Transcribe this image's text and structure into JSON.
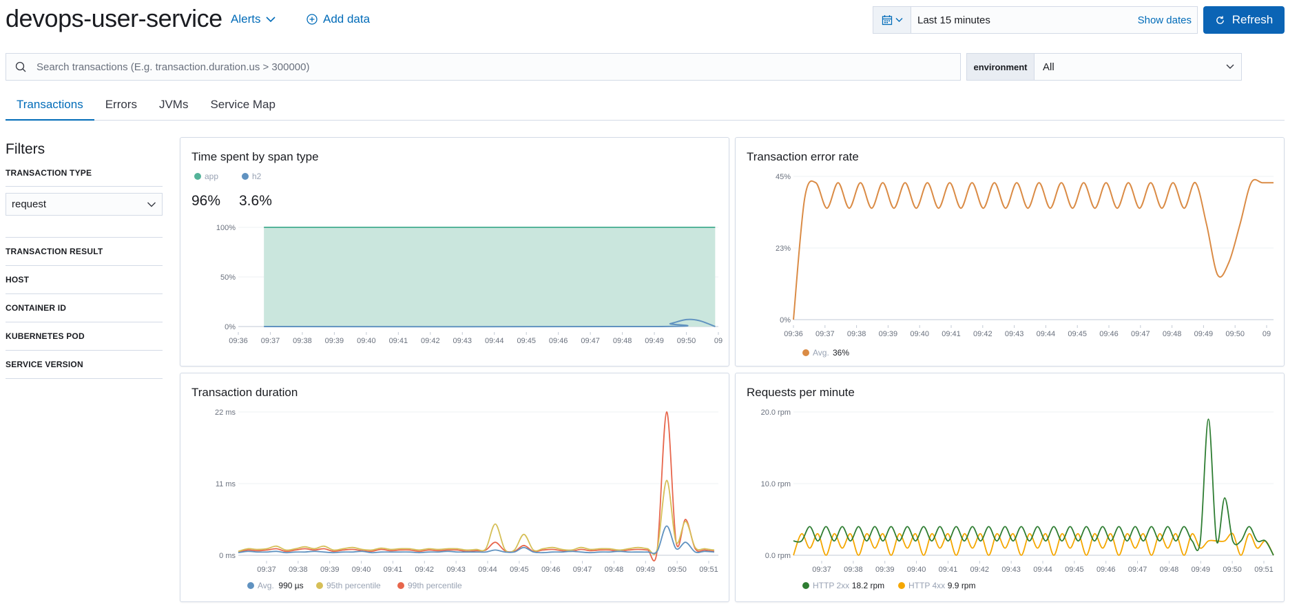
{
  "header": {
    "title": "devops-user-service",
    "alerts_label": "Alerts",
    "add_data_label": "Add data",
    "date_range": "Last 15 minutes",
    "show_dates_label": "Show dates",
    "refresh_label": "Refresh"
  },
  "search": {
    "placeholder": "Search transactions (E.g. transaction.duration.us > 300000)",
    "value": ""
  },
  "environment": {
    "label": "environment",
    "value": "All"
  },
  "tabs": [
    {
      "label": "Transactions",
      "active": true
    },
    {
      "label": "Errors",
      "active": false
    },
    {
      "label": "JVMs",
      "active": false
    },
    {
      "label": "Service Map",
      "active": false
    }
  ],
  "filters": {
    "title": "Filters",
    "transaction_type_heading": "TRANSACTION TYPE",
    "transaction_type_value": "request",
    "headings": [
      "TRANSACTION RESULT",
      "HOST",
      "CONTAINER ID",
      "KUBERNETES POD",
      "SERVICE VERSION"
    ]
  },
  "colors": {
    "accent": "#006bb8",
    "button": "#0b64b5",
    "app": "#54b399",
    "h2": "#6092c0",
    "orange": "#e7664c",
    "error_rate": "#da8b45",
    "p95": "#d6bf57",
    "green": "#2e7d32",
    "yellow": "#f5a700"
  },
  "icons": {
    "alerts_chevron": "chevron-down-icon",
    "add_data": "plus-circle-icon",
    "date_quick": "calendar-icon",
    "refresh": "refresh-icon",
    "search": "search-icon",
    "select_chevron": "chevron-down-icon"
  },
  "chart_data": [
    {
      "id": "span-type",
      "type": "area",
      "title": "Time spent by span type",
      "legend": [
        {
          "name": "app",
          "value": "96%",
          "color": "#54b399"
        },
        {
          "name": "h2",
          "value": "3.6%",
          "color": "#6092c0"
        }
      ],
      "y_ticks": [
        "100%",
        "50%",
        "0%"
      ],
      "ylim": [
        0,
        100
      ],
      "x_ticks": [
        "09:36",
        "09:37",
        "09:38",
        "09:39",
        "09:40",
        "09:41",
        "09:42",
        "09:43",
        "09:44",
        "09:45",
        "09:46",
        "09:47",
        "09:48",
        "09:49",
        "09:50",
        "09"
      ],
      "series": [
        {
          "name": "app",
          "start_minute": 9.36,
          "x": [
            0.8,
            14.9
          ],
          "values": [
            100,
            100
          ]
        },
        {
          "name": "h2",
          "x": [
            0.8,
            13.0,
            13.5,
            14.0,
            14.4,
            14.9
          ],
          "values": [
            0,
            0,
            3,
            7,
            6,
            0
          ]
        }
      ]
    },
    {
      "id": "error-rate",
      "type": "line",
      "title": "Transaction error rate",
      "y_ticks": [
        "45%",
        "23%",
        "0%"
      ],
      "ylim": [
        0,
        45
      ],
      "x_ticks": [
        "09:36",
        "09:37",
        "09:38",
        "09:39",
        "09:40",
        "09:41",
        "09:42",
        "09:43",
        "09:44",
        "09:45",
        "09:46",
        "09:47",
        "09:48",
        "09:49",
        "09:50",
        "09"
      ],
      "summary": {
        "name": "Avg.",
        "value": "36%"
      },
      "series": [
        {
          "name": "error rate",
          "values": [
            0,
            38,
            43,
            35,
            43,
            35,
            43,
            35,
            43,
            35,
            43,
            35,
            43,
            35,
            43,
            35,
            43,
            35,
            43,
            35,
            43,
            35,
            43,
            35,
            43,
            35,
            43,
            35,
            43,
            35,
            43,
            35,
            43,
            35,
            43,
            35,
            43,
            30,
            14,
            18,
            30,
            43,
            43,
            43
          ]
        }
      ]
    },
    {
      "id": "duration",
      "type": "line",
      "title": "Transaction duration",
      "y_ticks": [
        "22 ms",
        "11 ms",
        "0 ms"
      ],
      "ylim": [
        0,
        22
      ],
      "x_ticks": [
        "09:37",
        "09:38",
        "09:39",
        "09:40",
        "09:41",
        "09:42",
        "09:43",
        "09:44",
        "09:45",
        "09:46",
        "09:47",
        "09:48",
        "09:49",
        "09:50",
        "09:51"
      ],
      "legend": [
        {
          "name": "Avg.",
          "value": "990 µs",
          "color": "#6092c0"
        },
        {
          "name": "95th percentile",
          "value": "",
          "color": "#d6bf57"
        },
        {
          "name": "99th percentile",
          "value": "",
          "color": "#e7664c"
        }
      ],
      "series": [
        {
          "name": "Avg.",
          "values": [
            0.4,
            0.6,
            0.5,
            0.5,
            0.6,
            0.4,
            0.5,
            0.5,
            0.6,
            0.5,
            0.4,
            0.5,
            0.5,
            0.6,
            0.4,
            0.5,
            0.5,
            0.5,
            0.5,
            0.4,
            0.5,
            0.5,
            0.6,
            0.5,
            0.5,
            0.5,
            0.5,
            0.8,
            0.5,
            0.5,
            1.2,
            0.5,
            0.4,
            0.5,
            0.5,
            0.6,
            0.5,
            0.4,
            0.5,
            0.5,
            0.6,
            0.5,
            0.5,
            0.5,
            0.6,
            4.5,
            1.0,
            2.0,
            0.5,
            0.6,
            0.5
          ]
        },
        {
          "name": "95th percentile",
          "values": [
            0.6,
            1.0,
            0.9,
            1.0,
            1.4,
            0.8,
            1.0,
            1.3,
            1.0,
            1.4,
            0.8,
            1.0,
            1.2,
            0.9,
            0.8,
            1.1,
            0.9,
            1.0,
            1.0,
            0.8,
            1.0,
            0.9,
            1.0,
            1.0,
            0.8,
            0.9,
            1.0,
            4.8,
            0.9,
            0.8,
            3.2,
            0.8,
            1.0,
            1.2,
            0.9,
            0.8,
            1.2,
            0.9,
            1.0,
            1.0,
            0.8,
            1.0,
            1.2,
            1.0,
            0.9,
            11.5,
            2.0,
            5.2,
            1.2,
            1.0,
            0.8
          ]
        },
        {
          "name": "99th percentile",
          "values": [
            0.5,
            0.8,
            0.7,
            0.8,
            1.0,
            0.6,
            0.8,
            1.0,
            0.8,
            1.0,
            0.6,
            0.8,
            0.9,
            0.7,
            0.6,
            0.9,
            0.7,
            0.8,
            0.8,
            0.6,
            0.8,
            0.7,
            0.8,
            0.8,
            0.6,
            0.7,
            0.8,
            2.0,
            0.7,
            0.6,
            1.5,
            0.6,
            0.8,
            0.9,
            0.7,
            0.6,
            0.9,
            0.7,
            0.8,
            0.8,
            0.6,
            0.8,
            0.9,
            0.8,
            0.7,
            22.0,
            2.0,
            5.5,
            1.0,
            0.8,
            0.6
          ]
        }
      ]
    },
    {
      "id": "rpm",
      "type": "line",
      "title": "Requests per minute",
      "y_ticks": [
        "20.0 rpm",
        "10.0 rpm",
        "0.0 rpm"
      ],
      "ylim": [
        0,
        20
      ],
      "x_ticks": [
        "09:37",
        "09:38",
        "09:39",
        "09:40",
        "09:41",
        "09:42",
        "09:43",
        "09:44",
        "09:45",
        "09:46",
        "09:47",
        "09:48",
        "09:49",
        "09:50",
        "09:51"
      ],
      "legend": [
        {
          "name": "HTTP 2xx",
          "value": "18.2 rpm",
          "color": "#2e7d32"
        },
        {
          "name": "HTTP 4xx",
          "value": "9.9 rpm",
          "color": "#f5a700"
        }
      ],
      "series": [
        {
          "name": "HTTP 2xx",
          "values": [
            2,
            2,
            4,
            2,
            4,
            2,
            4,
            2,
            4,
            2,
            4,
            2,
            4,
            2,
            4,
            2,
            4,
            2,
            4,
            2,
            4,
            2,
            4,
            2,
            4,
            2,
            4,
            2,
            4,
            2,
            4,
            2,
            4,
            2,
            4,
            2,
            4,
            2,
            4,
            2,
            4,
            2,
            4,
            2,
            4,
            2,
            4,
            2,
            4,
            2,
            2,
            19,
            2,
            8,
            2,
            2,
            4,
            2,
            2,
            0
          ]
        },
        {
          "name": "HTTP 4xx",
          "values": [
            0,
            3,
            1,
            3,
            0,
            3,
            1,
            3,
            0,
            3,
            1,
            3,
            0,
            3,
            1,
            3,
            0,
            3,
            1,
            3,
            0,
            3,
            1,
            3,
            0,
            3,
            1,
            3,
            0,
            3,
            1,
            3,
            0,
            3,
            1,
            3,
            0,
            3,
            1,
            3,
            0,
            3,
            1,
            3,
            0,
            3,
            1,
            3,
            0,
            3,
            1,
            2,
            2,
            2,
            3,
            0,
            3,
            1,
            2,
            0
          ]
        }
      ]
    }
  ]
}
